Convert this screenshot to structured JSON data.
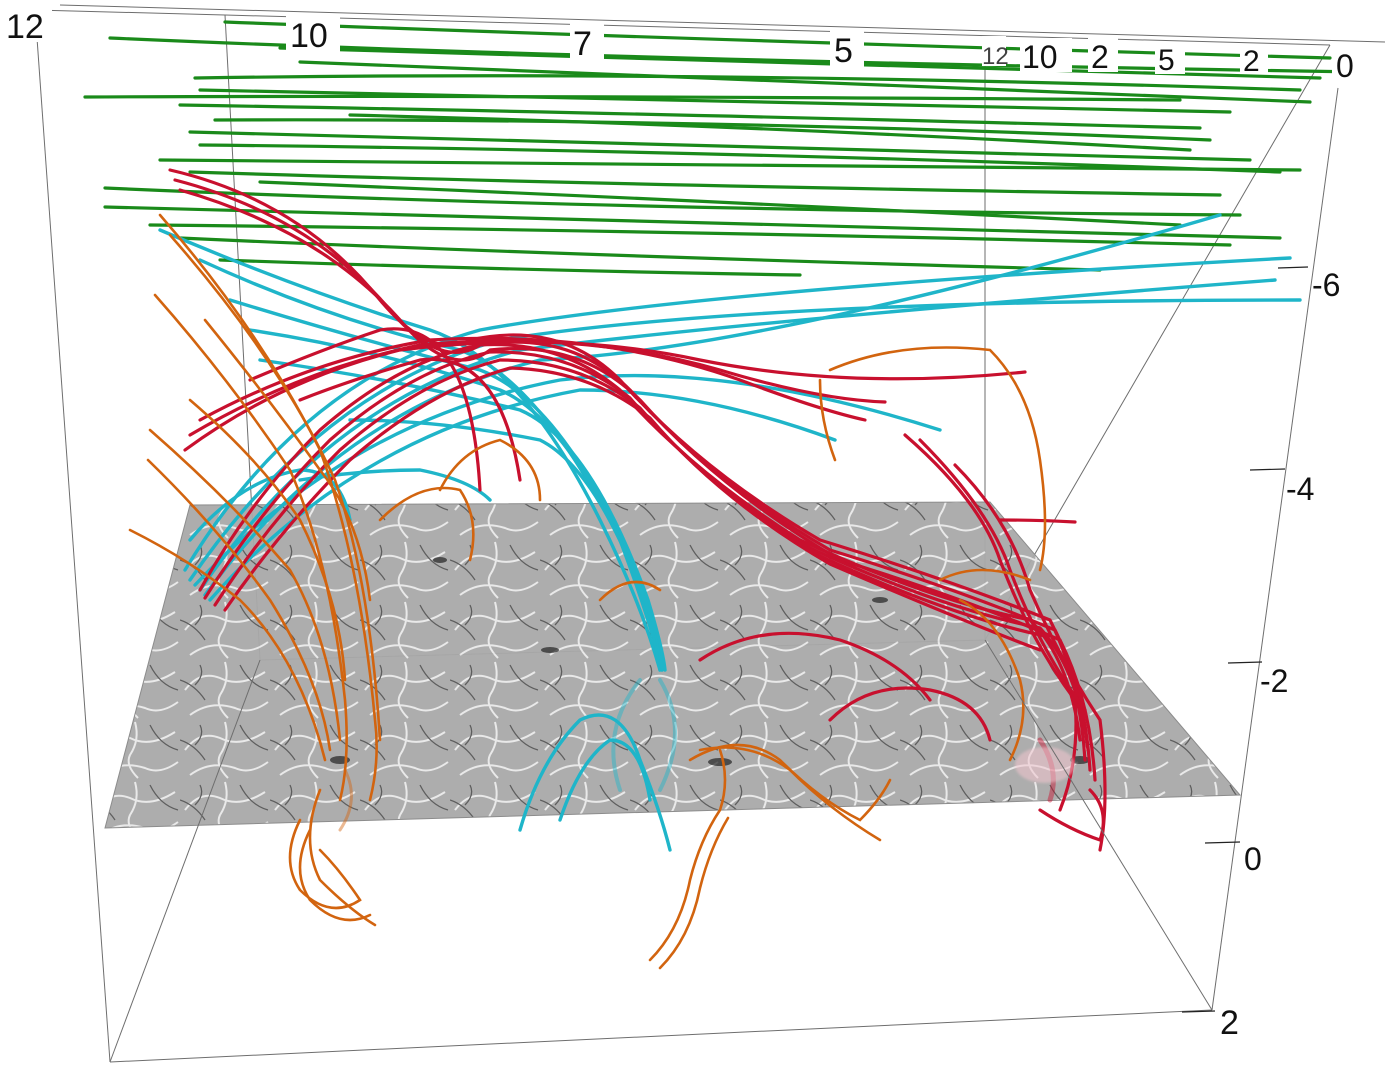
{
  "colors": {
    "background": "#ffffff",
    "frame": "#6e6e6e",
    "slice": "#a8a8a8",
    "open_field_lines": "#1a8a1a",
    "twisted_flux_rope": "#c8102e",
    "cyan_loops": "#1fb5c9",
    "orange_loops": "#d2640f"
  },
  "axes": {
    "top_ticks": [
      "12",
      "10",
      "7",
      "5",
      "12",
      "10",
      "2",
      "5",
      "2",
      "0"
    ],
    "right_ticks": [
      "-6",
      "-4",
      "-2",
      "0",
      "2"
    ]
  },
  "legend": []
}
